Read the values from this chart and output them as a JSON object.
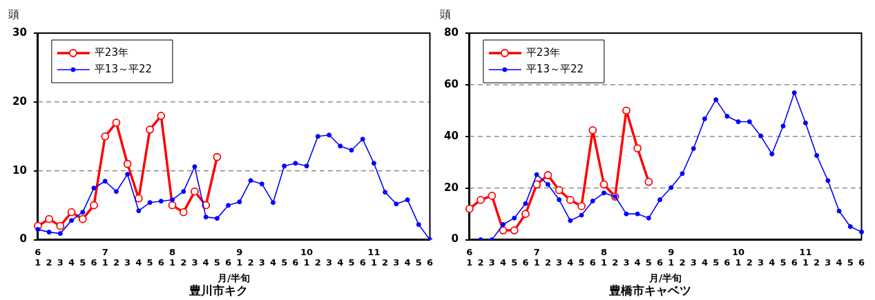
{
  "chart_data": [
    {
      "type": "line",
      "title": "豊川市キク",
      "xlabel": "月/半旬",
      "ylabel": "頭",
      "categories": [
        "6\n1",
        "2",
        "3",
        "4",
        "5",
        "6",
        "7\n1",
        "2",
        "3",
        "4",
        "5",
        "6",
        "8\n1",
        "2",
        "3",
        "4",
        "5",
        "6",
        "9\n1",
        "2",
        "3",
        "4",
        "5",
        "6",
        "10\n1",
        "2",
        "3",
        "4",
        "5",
        "6",
        "11\n1",
        "2",
        "3",
        "4",
        "5",
        "6"
      ],
      "ylim": [
        0,
        30
      ],
      "yticks": [
        0,
        10,
        20,
        30
      ],
      "grid": "y",
      "legend": "top left",
      "series": [
        {
          "name": "平23年",
          "color": "#ff0000",
          "marker": "circle",
          "values": [
            2,
            3,
            2,
            4,
            3,
            5,
            15,
            17,
            11,
            6,
            16,
            18,
            5,
            4,
            7,
            5,
            12,
            null,
            null,
            null,
            null,
            null,
            null,
            null,
            null,
            null,
            null,
            null,
            null,
            null,
            null,
            null,
            null,
            null,
            null,
            null
          ]
        },
        {
          "name": "平13～平22",
          "color": "#0000ff",
          "marker": "circle",
          "values": [
            1.5,
            1.1,
            0.9,
            2.8,
            4,
            7.5,
            8.5,
            7,
            9.5,
            4.2,
            5.4,
            5.6,
            5.8,
            7,
            10.6,
            3.3,
            3.1,
            5,
            5.5,
            8.6,
            8.1,
            5.4,
            10.7,
            11.1,
            10.7,
            15,
            15.2,
            13.6,
            13,
            14.6,
            11.1,
            6.9,
            5.2,
            5.8,
            2.2,
            0
          ]
        }
      ]
    },
    {
      "type": "line",
      "title": "豊橋市キャベツ",
      "xlabel": "月/半旬",
      "ylabel": "頭",
      "categories": [
        "6\n1",
        "2",
        "3",
        "4",
        "5",
        "6",
        "7\n1",
        "2",
        "3",
        "4",
        "5",
        "6",
        "8\n1",
        "2",
        "3",
        "4",
        "5",
        "6",
        "9\n1",
        "2",
        "3",
        "4",
        "5",
        "6",
        "10\n1",
        "2",
        "3",
        "4",
        "5",
        "6",
        "11\n1",
        "2",
        "3",
        "4",
        "5",
        "6"
      ],
      "ylim": [
        0,
        80
      ],
      "yticks": [
        0,
        20,
        40,
        60,
        80
      ],
      "grid": "y",
      "legend": "top left",
      "series": [
        {
          "name": "平23年",
          "color": "#ff0000",
          "marker": "circle",
          "values": [
            12,
            15.4,
            17,
            3.6,
            3.6,
            10,
            21.4,
            25,
            19.2,
            15.4,
            13,
            42.4,
            21.4,
            16.7,
            50,
            35.4,
            22.4,
            null,
            null,
            null,
            null,
            null,
            null,
            null,
            null,
            null,
            null,
            null,
            null,
            null,
            null,
            null,
            null,
            null,
            null,
            null
          ]
        },
        {
          "name": "平13～平22",
          "color": "#0000ff",
          "marker": "circle",
          "values": [
            null,
            0,
            0,
            5.9,
            8.4,
            14,
            25.2,
            21.4,
            15.5,
            7.4,
            9.5,
            15,
            18.1,
            16.7,
            10,
            10,
            8.4,
            15.5,
            20.2,
            25.6,
            35.3,
            46.8,
            54.2,
            47.8,
            45.7,
            45.7,
            40.2,
            33.2,
            44,
            56.9,
            45.2,
            32.6,
            22.9,
            11.1,
            5.1,
            3
          ]
        }
      ]
    }
  ]
}
